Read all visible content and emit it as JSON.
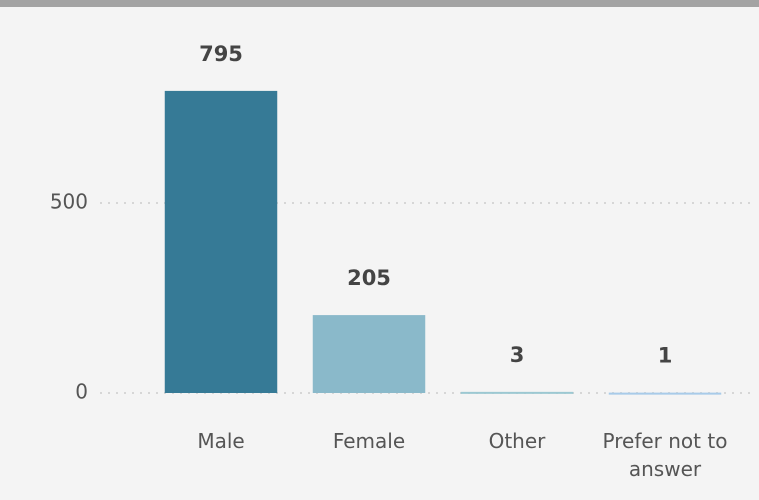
{
  "chart_data": {
    "type": "bar",
    "categories": [
      "Male",
      "Female",
      "Other",
      "Prefer not to answer"
    ],
    "values": [
      795,
      205,
      3,
      1
    ],
    "colors": [
      "#367a96",
      "#8ab9ca",
      "#9cc8d2",
      "#a8cbe9"
    ],
    "ylim": [
      0,
      1000
    ],
    "yticks": [
      0,
      500
    ],
    "grid": true
  }
}
